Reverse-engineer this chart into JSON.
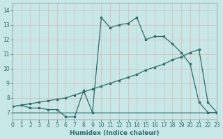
{
  "xlabel": "Humidex (Indice chaleur)",
  "bg_color": "#c8e8e8",
  "grid_color": "#e0f0f0",
  "line_color": "#2e6b6b",
  "xlim": [
    0,
    23
  ],
  "ylim": [
    6.5,
    14.5
  ],
  "xticks": [
    0,
    1,
    2,
    3,
    4,
    5,
    6,
    7,
    8,
    9,
    10,
    11,
    12,
    13,
    14,
    15,
    16,
    17,
    18,
    19,
    20,
    21,
    22,
    23
  ],
  "yticks": [
    7,
    8,
    9,
    10,
    11,
    12,
    13,
    14
  ],
  "curve_main_x": [
    0,
    1,
    2,
    3,
    4,
    5,
    6,
    7,
    8,
    9,
    10,
    11,
    12,
    13,
    14,
    15,
    16,
    17,
    18,
    19,
    20,
    21,
    22,
    23
  ],
  "curve_main_y": [
    7.4,
    7.5,
    7.3,
    7.3,
    7.2,
    7.2,
    6.7,
    6.7,
    8.5,
    7.0,
    13.5,
    12.8,
    13.0,
    13.1,
    13.5,
    12.0,
    12.2,
    12.2,
    11.7,
    11.1,
    10.3,
    7.7,
    7.0,
    7.0
  ],
  "curve_upper_x": [
    0,
    1,
    2,
    3,
    4,
    5,
    6,
    7,
    8,
    9,
    10,
    11,
    12,
    13,
    14,
    15,
    16,
    17,
    18,
    19,
    20,
    21,
    22,
    23
  ],
  "curve_upper_y": [
    7.4,
    7.5,
    7.6,
    7.7,
    7.8,
    7.9,
    8.0,
    8.2,
    8.4,
    8.6,
    8.8,
    9.0,
    9.2,
    9.4,
    9.6,
    9.9,
    10.1,
    10.3,
    10.6,
    10.8,
    11.1,
    11.3,
    7.7,
    7.0
  ],
  "curve_lower_x": [
    0,
    1,
    2,
    3,
    4,
    5,
    6,
    7,
    8,
    9,
    10,
    11,
    12,
    13,
    14,
    15,
    16,
    17,
    18,
    19,
    20,
    21,
    22,
    23
  ],
  "curve_lower_y": [
    7.0,
    7.0,
    7.0,
    7.0,
    7.0,
    7.0,
    7.0,
    7.0,
    7.0,
    7.0,
    7.0,
    7.0,
    7.0,
    7.0,
    7.0,
    7.0,
    7.0,
    7.0,
    7.0,
    7.0,
    7.0,
    7.0,
    7.0,
    7.0
  ]
}
